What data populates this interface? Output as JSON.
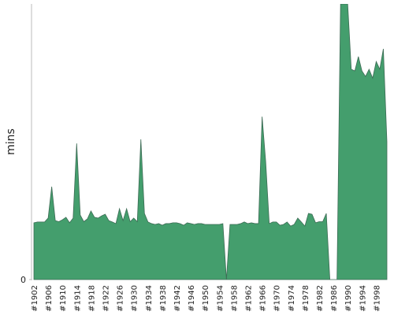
{
  "chart_data": {
    "type": "area",
    "y_label": "mins",
    "categories": [
      "#1902",
      null,
      null,
      null,
      "#1906",
      null,
      null,
      null,
      "#1910",
      null,
      null,
      null,
      "#1914",
      null,
      null,
      null,
      "#1918",
      null,
      null,
      null,
      "#1922",
      null,
      null,
      null,
      "#1926",
      null,
      null,
      null,
      "#1930",
      null,
      null,
      null,
      "#1934",
      null,
      null,
      null,
      "#1938",
      null,
      null,
      null,
      "#1942",
      null,
      null,
      null,
      "#1946",
      null,
      null,
      null,
      "#1950",
      null,
      null,
      null,
      "#1954",
      null,
      null,
      null,
      "#1958",
      null,
      null,
      null,
      "#1962",
      null,
      null,
      null,
      "#1966",
      null,
      null,
      null,
      "#1970",
      null,
      null,
      null,
      "#1974",
      null,
      null,
      null,
      "#1978",
      null,
      null,
      null,
      "#1982",
      null,
      null,
      null,
      "#1986",
      null,
      null,
      null,
      "#1990",
      null,
      null,
      null,
      "#1994",
      null,
      null,
      null,
      "#1998",
      null,
      null,
      null
    ],
    "values": [
      20.6,
      20.9,
      20.9,
      20.9,
      22.3,
      33.7,
      21.4,
      21,
      21.7,
      22.6,
      20.6,
      22.3,
      49.4,
      23.4,
      21,
      22,
      24.9,
      22.6,
      22.3,
      23.1,
      23.7,
      21.4,
      20.9,
      20.3,
      25.7,
      21.4,
      25.7,
      21,
      22.3,
      21,
      50.9,
      24,
      20.9,
      20.3,
      20,
      20.3,
      19.7,
      20.3,
      20.3,
      20.6,
      20.6,
      20.3,
      19.7,
      20.6,
      20.3,
      20,
      20.3,
      20.3,
      20,
      20,
      20,
      20,
      20,
      20.3,
      0,
      20,
      20,
      20,
      20.3,
      20.9,
      20.3,
      20.6,
      20.3,
      20.3,
      59.1,
      42.9,
      20.3,
      20.9,
      20.9,
      19.7,
      20,
      20.9,
      19.4,
      20,
      22.3,
      20.9,
      19.4,
      24,
      23.7,
      20.6,
      21,
      21,
      24,
      0,
      0,
      0,
      100,
      100,
      100,
      76.3,
      75.7,
      80.9,
      75.7,
      73.7,
      76.3,
      73.1,
      79.1,
      76.3,
      83.7,
      50
    ],
    "color": "#449e6d",
    "ylim": [
      0,
      100
    ],
    "yticks": [
      0
    ]
  }
}
